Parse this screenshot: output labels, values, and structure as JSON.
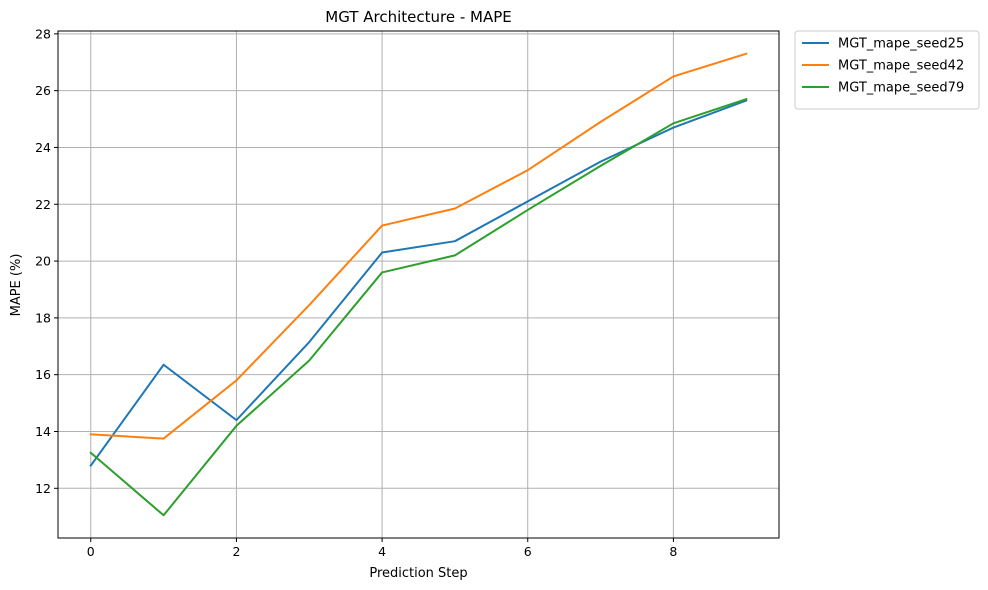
{
  "chart_data": {
    "type": "line",
    "title": "MGT Architecture - MAPE",
    "xlabel": "Prediction Step",
    "ylabel": "MAPE (%)",
    "x": [
      0,
      1,
      2,
      3,
      4,
      5,
      6,
      7,
      8,
      9
    ],
    "xticks": [
      "0",
      "2",
      "4",
      "6",
      "8"
    ],
    "xtick_values": [
      0,
      2,
      4,
      6,
      8
    ],
    "yticks": [
      "12",
      "14",
      "16",
      "18",
      "20",
      "22",
      "24",
      "26",
      "28"
    ],
    "ytick_values": [
      12,
      14,
      16,
      18,
      20,
      22,
      24,
      26,
      28
    ],
    "xlim": [
      -0.45,
      9.45
    ],
    "ylim": [
      10.25,
      28.1
    ],
    "grid": true,
    "legend_position": "outside-top-right",
    "series": [
      {
        "name": "MGT_mape_seed25",
        "color": "#1f77b4",
        "values": [
          12.8,
          16.35,
          14.4,
          17.15,
          20.3,
          20.7,
          22.1,
          23.5,
          24.7,
          25.65
        ]
      },
      {
        "name": "MGT_mape_seed42",
        "color": "#ff7f0e",
        "values": [
          13.9,
          13.75,
          15.8,
          18.45,
          21.25,
          21.85,
          23.2,
          24.9,
          26.5,
          27.3
        ]
      },
      {
        "name": "MGT_mape_seed79",
        "color": "#2ca02c",
        "values": [
          13.25,
          11.05,
          14.2,
          16.5,
          19.6,
          20.2,
          21.8,
          23.35,
          24.85,
          25.7
        ]
      }
    ]
  }
}
